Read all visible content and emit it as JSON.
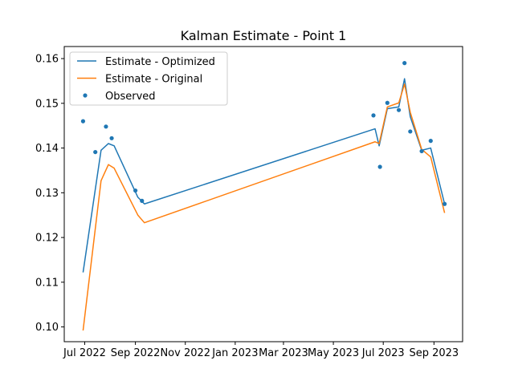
{
  "chart_data": {
    "type": "line",
    "title": "Kalman Estimate - Point 1",
    "xlabel": "",
    "ylabel": "",
    "xlim": [
      "2022-06-06",
      "2023-10-06"
    ],
    "ylim": [
      0.0967,
      0.1627
    ],
    "x_ticks": [
      "2022-07-01",
      "2022-09-01",
      "2022-11-01",
      "2023-01-01",
      "2023-03-01",
      "2023-05-01",
      "2023-07-01",
      "2023-09-01"
    ],
    "x_tick_labels": [
      "Jul 2022",
      "Sep 2022",
      "Nov 2022",
      "Jan 2023",
      "Mar 2023",
      "May 2023",
      "Jul 2023",
      "Sep 2023"
    ],
    "y_ticks": [
      0.1,
      0.11,
      0.12,
      0.13,
      0.14,
      0.15,
      0.16
    ],
    "y_tick_labels": [
      "0.10",
      "0.11",
      "0.12",
      "0.13",
      "0.14",
      "0.15",
      "0.16"
    ],
    "grid": false,
    "legend_position": "top-left",
    "series": [
      {
        "name": "Estimate - Optimized",
        "kind": "line",
        "color": "#1f77b4",
        "x": [
          "2022-06-29",
          "2022-07-21",
          "2022-07-30",
          "2022-08-06",
          "2022-09-04",
          "2022-09-12",
          "2023-06-21",
          "2023-06-26",
          "2023-07-06",
          "2023-07-20",
          "2023-07-27",
          "2023-08-03",
          "2023-08-17",
          "2023-08-28",
          "2023-09-14"
        ],
        "values": [
          0.1122,
          0.1395,
          0.141,
          0.1405,
          0.129,
          0.1275,
          0.1443,
          0.1405,
          0.1488,
          0.1492,
          0.1555,
          0.147,
          0.1395,
          0.14,
          0.1275
        ]
      },
      {
        "name": "Estimate - Original",
        "kind": "line",
        "color": "#ff7f0e",
        "x": [
          "2022-06-29",
          "2022-07-21",
          "2022-07-30",
          "2022-08-06",
          "2022-09-04",
          "2022-09-12",
          "2023-06-21",
          "2023-06-26",
          "2023-07-06",
          "2023-07-20",
          "2023-07-27",
          "2023-08-03",
          "2023-08-17",
          "2023-08-28",
          "2023-09-14"
        ],
        "values": [
          0.0992,
          0.1327,
          0.1363,
          0.1355,
          0.125,
          0.1233,
          0.1414,
          0.141,
          0.1492,
          0.1501,
          0.1543,
          0.148,
          0.1397,
          0.138,
          0.1255
        ]
      },
      {
        "name": "Observed",
        "kind": "scatter",
        "color": "#1f77b4",
        "x": [
          "2022-06-29",
          "2022-07-14",
          "2022-07-27",
          "2022-08-03",
          "2022-09-01",
          "2022-09-09",
          "2023-06-19",
          "2023-06-27",
          "2023-07-06",
          "2023-07-20",
          "2023-07-27",
          "2023-08-03",
          "2023-08-17",
          "2023-08-28",
          "2023-09-14"
        ],
        "values": [
          0.146,
          0.1391,
          0.1448,
          0.1422,
          0.1305,
          0.1282,
          0.1473,
          0.1358,
          0.1501,
          0.1485,
          0.159,
          0.1437,
          0.1393,
          0.1416,
          0.1275
        ]
      }
    ]
  }
}
